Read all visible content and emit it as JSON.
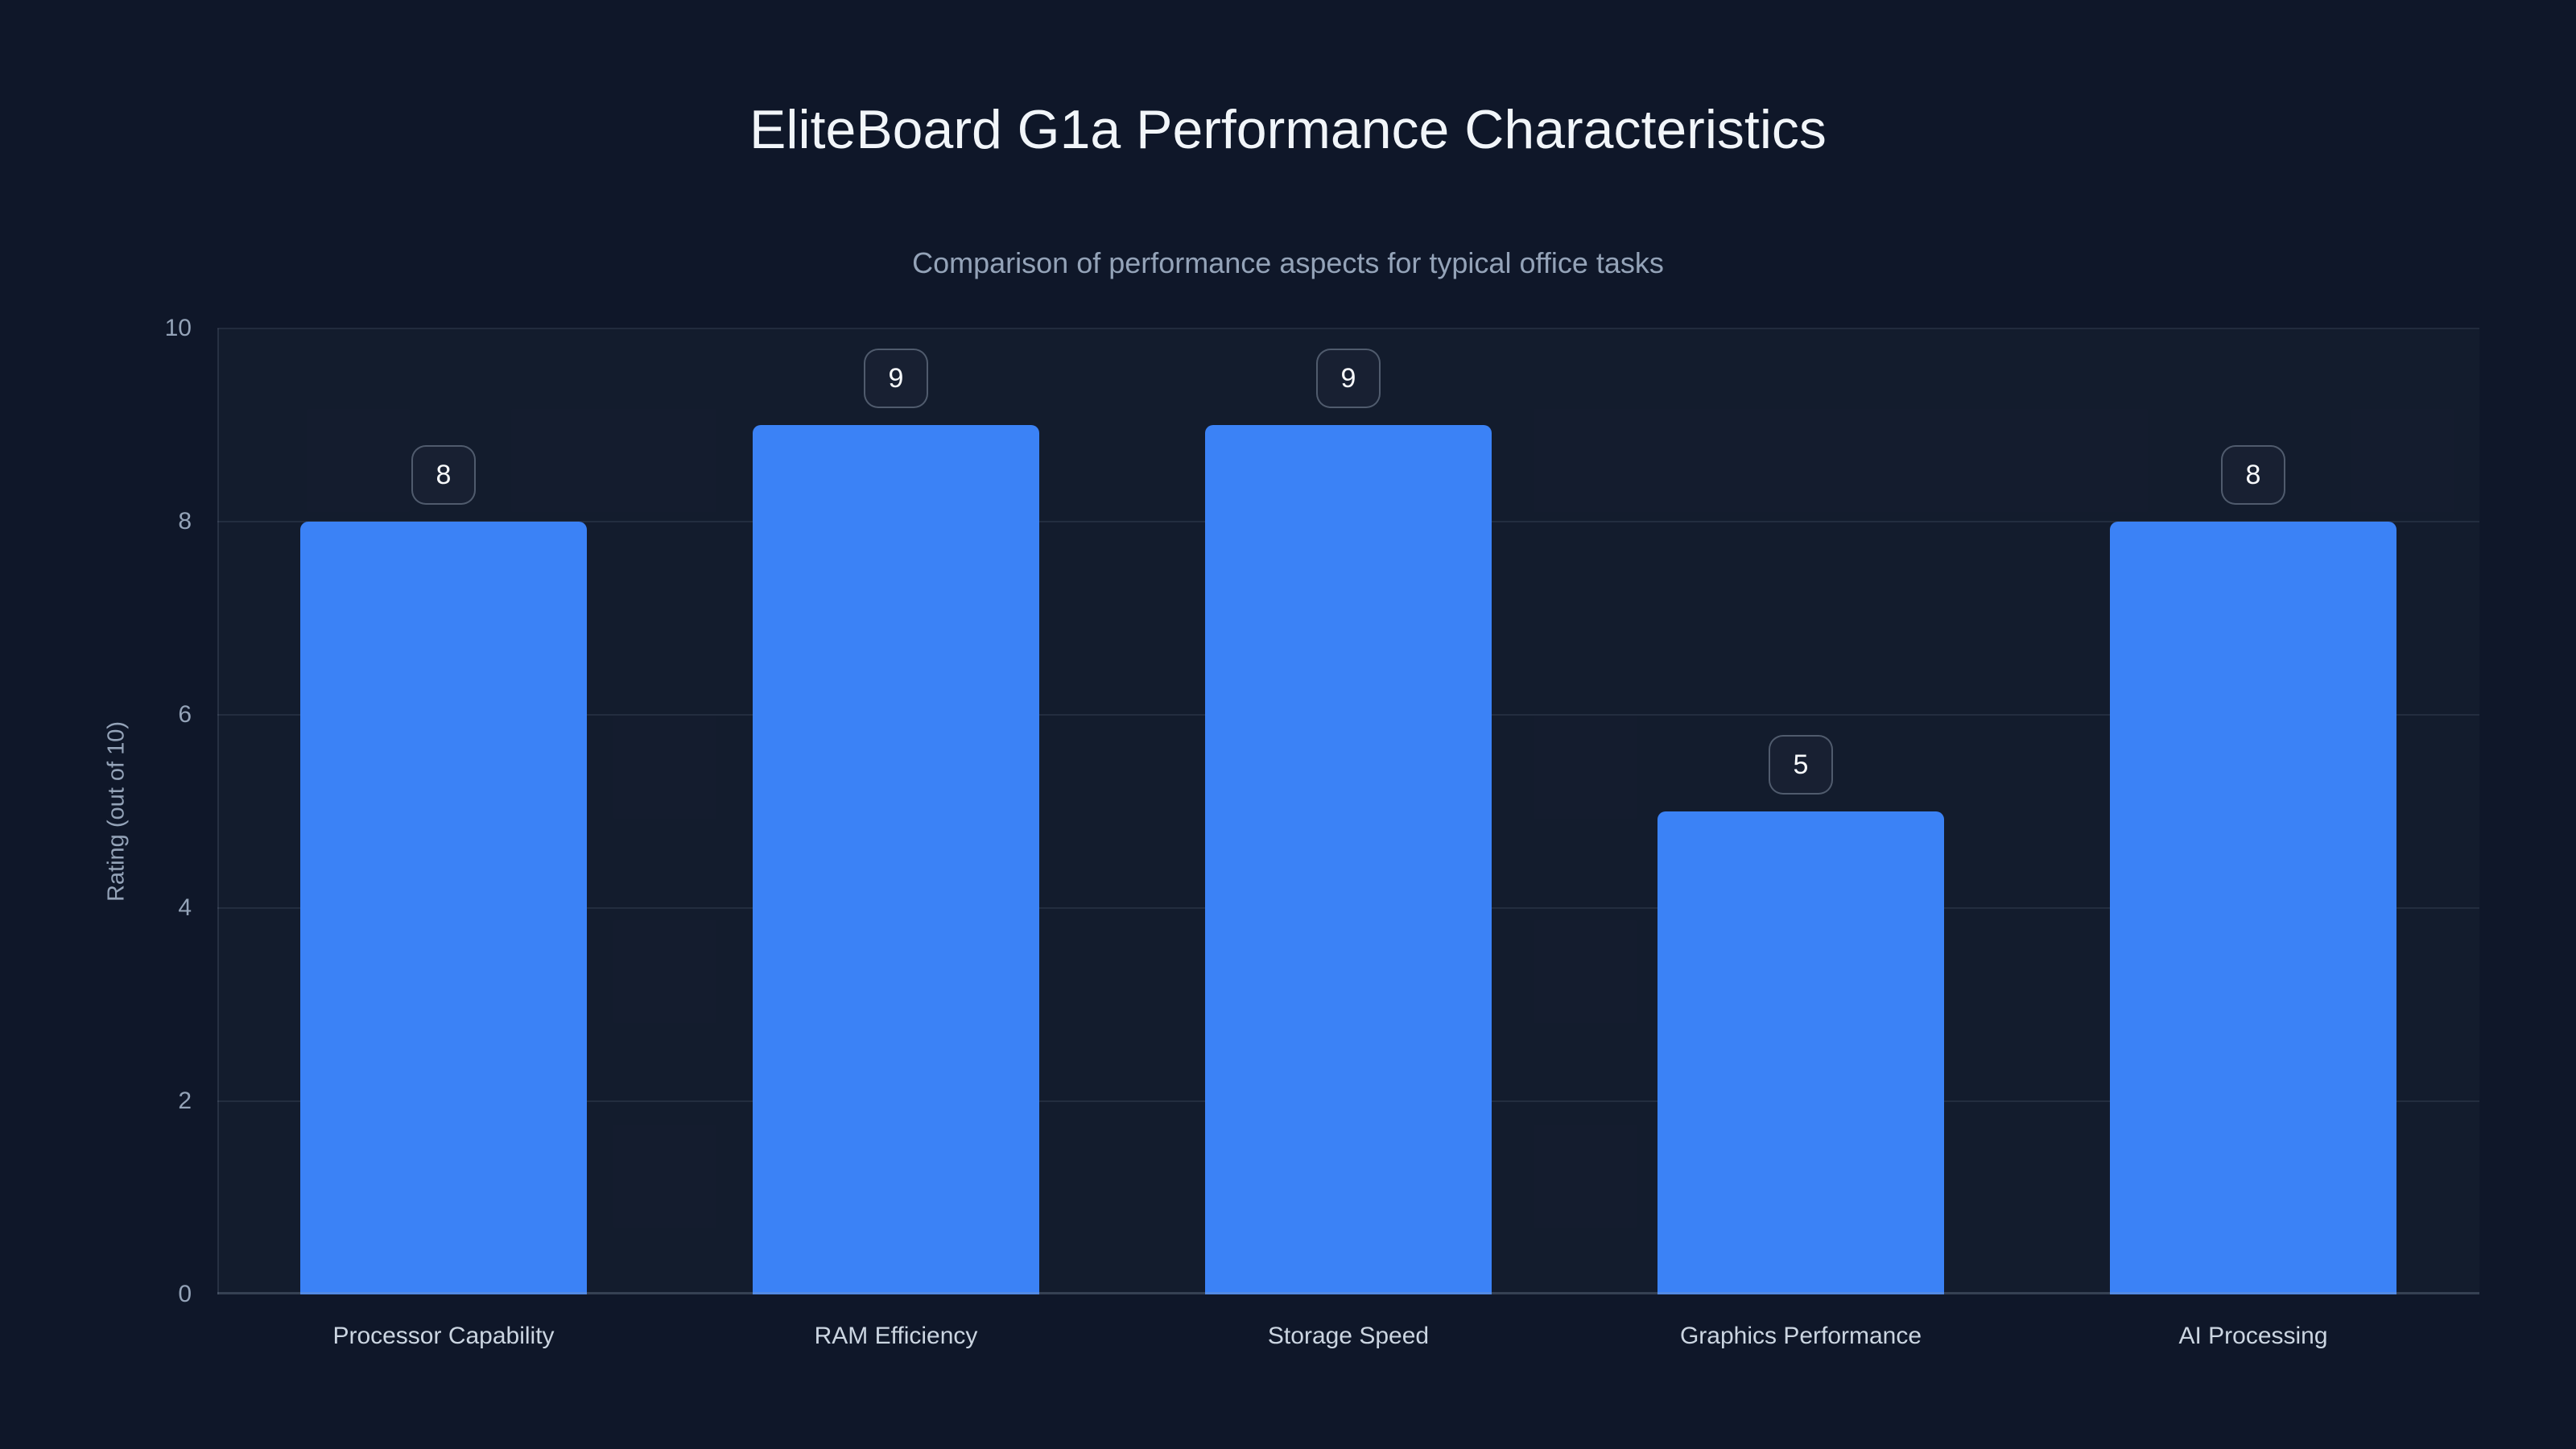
{
  "header": {
    "title": "EliteBoard G1a Performance Characteristics",
    "subtitle": "Comparison of performance aspects for typical office tasks"
  },
  "chart_data": {
    "type": "bar",
    "title": "EliteBoard G1a Performance Characteristics",
    "subtitle": "Comparison of performance aspects for typical office tasks",
    "categories": [
      "Processor Capability",
      "RAM Efficiency",
      "Storage Speed",
      "Graphics Performance",
      "AI Processing"
    ],
    "values": [
      8,
      9,
      9,
      5,
      8
    ],
    "data_labels": [
      "8",
      "9",
      "9",
      "5",
      "8"
    ],
    "xlabel": "",
    "ylabel": "Rating (out of 10)",
    "ylim": [
      0,
      10
    ],
    "yticks": [
      0,
      2,
      4,
      6,
      8,
      10
    ],
    "grid": "horizontal-only",
    "legend": "none",
    "bar_color": "#3b82f6"
  },
  "colors": {
    "background": "#0f1729",
    "bar": "#3b82f6",
    "title_text": "#f1f5f9",
    "subtitle_text": "#94a3b8",
    "axis_tick_text": "#94a3b8",
    "category_text": "#cbd5e1",
    "badge_text": "#f8fafc"
  }
}
